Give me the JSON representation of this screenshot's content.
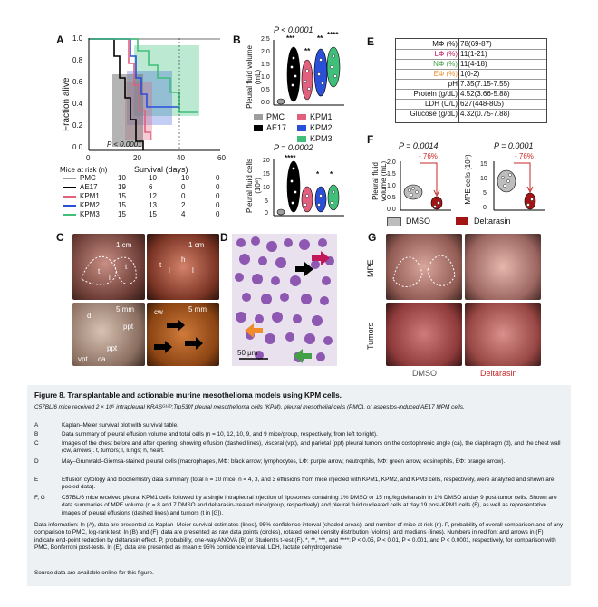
{
  "panels": {
    "a": {
      "label": "A",
      "ylabel": "Fraction alive",
      "xlabel": "Survival (days)",
      "yticks": [
        "1.0",
        "0.8",
        "0.6",
        "0.4",
        "0.2",
        "0.0"
      ],
      "xticks": [
        "0",
        "20",
        "40",
        "60"
      ],
      "pvalue": "P < 0.0001",
      "risk_title": "Mice at risk (n)",
      "risk_cols": [
        "0",
        "10",
        "20",
        "40"
      ],
      "risk_rows": [
        {
          "name": "PMC",
          "vals": [
            "10",
            "10",
            "10",
            "0"
          ]
        },
        {
          "name": "AE17",
          "vals": [
            "19",
            "6",
            "0",
            "0"
          ]
        },
        {
          "name": "KPM1",
          "vals": [
            "15",
            "12",
            "0",
            "0"
          ]
        },
        {
          "name": "KPM2",
          "vals": [
            "15",
            "13",
            "2",
            "0"
          ]
        },
        {
          "name": "KPM3",
          "vals": [
            "15",
            "15",
            "4",
            "0"
          ]
        }
      ]
    },
    "b": {
      "label": "B",
      "top_p": "P < 0.0001",
      "top_ylabel": "Pleural fluid volume (mL)",
      "top_yticks": [
        "2.5",
        "2.0",
        "1.5",
        "1.0",
        "0.5",
        "0.0"
      ],
      "top_stars": [
        "***",
        "**",
        "**",
        "****"
      ],
      "bottom_p": "P = 0.0002",
      "bottom_ylabel": "Pleural fluid cells (10⁶)",
      "bottom_yticks": [
        "20",
        "15",
        "10",
        "5",
        "0"
      ],
      "bottom_stars": [
        "****",
        "*",
        "*"
      ],
      "legend": [
        "PMC",
        "AE17",
        "KPM1",
        "KPM2",
        "KPM3"
      ]
    },
    "e": {
      "label": "E",
      "rows": [
        {
          "name": "MΦ (%)",
          "value": "78(69-87)"
        },
        {
          "name": "LΦ (%)",
          "value": "11(1-21)"
        },
        {
          "name": "NΦ (%)",
          "value": "11(4-18)"
        },
        {
          "name": "EΦ (%)",
          "value": "1(0-2)"
        },
        {
          "name": "pH",
          "value": "7.35(7.15-7.55)"
        },
        {
          "name": "Protein (g/dL)",
          "value": "4.52(3.66-5.88)"
        },
        {
          "name": "LDH (U/L)",
          "value": "627(448-805)"
        },
        {
          "name": "Glucose (g/dL)",
          "value": "4.32(0.75-7.88)"
        }
      ]
    },
    "f": {
      "label": "F",
      "left_p": "P = 0.0014",
      "left_pct": "- 76%",
      "left_ylabel": "Pleural fluid volume (mL)",
      "left_yticks": [
        "2.0",
        "1.5",
        "1.0",
        "0.5",
        "0.0"
      ],
      "right_p": "P = 0.0001",
      "right_pct": "- 76%",
      "right_ylabel": "MPE cells (10⁶)",
      "right_yticks": [
        "15",
        "10",
        "5",
        "0"
      ],
      "legend": [
        "DMSO",
        "Deltarasin"
      ]
    },
    "c": {
      "label": "C",
      "scale1": "1 cm",
      "scale2": "1 cm",
      "scale3": "5 mm",
      "scale4": "5 mm",
      "marks": [
        "t",
        "t",
        "l",
        "l",
        "l",
        "h",
        "t",
        "d",
        "ppt",
        "vpt",
        "ca",
        "ppt",
        "cw"
      ]
    },
    "d": {
      "label": "D",
      "scale": "50 μm"
    },
    "g": {
      "label": "G",
      "row1": "MPE",
      "row2": "Tumors",
      "col1": "DMSO",
      "col2": "Deltarasin"
    }
  },
  "colors": {
    "pmc": "#9e9e9e",
    "ae17": "#000000",
    "kpm1": "#e0607e",
    "kpm2": "#2a4fd8",
    "kpm3": "#3fbf7a",
    "dmso": "#bdbdbd",
    "deltarasin": "#a31515",
    "lphi": "#c2185b",
    "nphi": "#43a047",
    "ephi": "#f08c2a"
  },
  "caption": {
    "title": "Figure 8.   Transplantable and actionable murine mesothelioma models using KPM cells.",
    "intro": "C57BL/6 mice received 2 × 10⁵ intrapleural KRASᴳ¹²ᴰ;Trp53f/f pleural mesothelioma cells (KPM), pleural mesothelial cells (PMC), or asbestos-induced AE17 MPM cells.",
    "items": [
      {
        "key": "A",
        "text": "Kaplan–Meier survival plot with survival table."
      },
      {
        "key": "B",
        "text": "Data summary of pleural effusion volume and total cells (n = 10, 12, 10, 9, and 9 mice/group, respectively, from left to right)."
      },
      {
        "key": "C",
        "text": "Images of the chest before and after opening, showing effusion (dashed lines), visceral (vpt), and parietal (ppt) pleural tumors on the costophrenic angle (ca), the diaphragm (d), and the chest wall (cw, arrows). t, tumors; l, lungs; h, heart."
      },
      {
        "key": "D",
        "text": "May–Grunwald–Giemsa-stained pleural cells (macrophages, MΦ: black arrow; lymphocytes, LΦ: purple arrow; neutrophils, NΦ: green arrow; eosinophils, EΦ: orange arrow)."
      },
      {
        "key": "E",
        "text": "Effusion cytology and biochemistry data summary (total n = 10 mice; n = 4, 3, and 3 effusions from mice injected with KPM1, KPM2, and KPM3 cells, respectively, were analyzed and shown are pooled data)."
      },
      {
        "key": "F, G",
        "text": "C57BL/6 mice received pleural KPM1 cells followed by a single intrapleural injection of liposomes containing 1% DMSO or 15 mg/kg deltarasin in 1% DMSO at day 9 post-tumor cells. Shown are data summaries of MPE volume (n = 8 and 7 DMSO and deltarasin-treated mice/group, respectively) and pleural fluid nucleated cells at day 19 post-KPM1 cells (F), as well as representative images of pleural effusions (dashed lines) and tumors (t in [G])."
      }
    ],
    "info": "Data information: In (A), data are presented as Kaplan–Meier survival estimates (lines), 95% confidence interval (shaded areas), and number of mice at risk (n). P, probability of overall comparison and of any comparison to PMC, log-rank test. In (B) and (F), data are presented as raw data points (circles), rotated kernel density distribution (violins), and medians (lines). Numbers in red font and arrows in (F) indicate end-point reduction by deltarasin effect. P, probability, one-way ANOVA (B) or Student's t-test (F). *, **, ***, and ****: P < 0.05, P < 0.01, P < 0.001, and P < 0.0001, respectively, for comparison with PMC, Bonferroni post-tests. In (E), data are presented as mean ± 95% confidence interval. LDH, lactate dehydrogenase.",
    "source": "Source data are available online for this figure."
  }
}
